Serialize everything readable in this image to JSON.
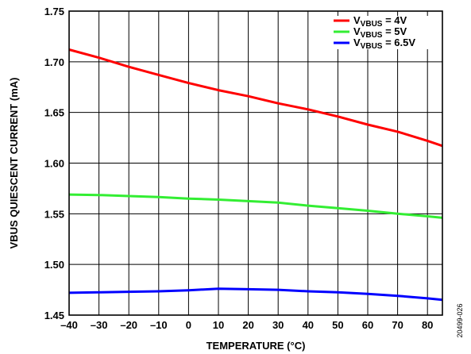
{
  "chart_data": {
    "type": "line",
    "xlabel": "TEMPERATURE (°C)",
    "ylabel": "VBUS QUIESCENT CURRENT (mA)",
    "xlim": [
      -40,
      85
    ],
    "ylim": [
      1.45,
      1.75
    ],
    "xticks": [
      "–40",
      "–30",
      "–20",
      "–10",
      "0",
      "10",
      "20",
      "30",
      "40",
      "50",
      "60",
      "70",
      "80"
    ],
    "yticks": [
      "1.45",
      "1.50",
      "1.55",
      "1.60",
      "1.65",
      "1.70",
      "1.75"
    ],
    "grid": true,
    "legend_position": "top-right",
    "series": [
      {
        "name": "VVBUS = 4V",
        "label_main": "V",
        "label_sub": "VBUS",
        "label_tail": " = 4V",
        "color": "#ff0000",
        "x": [
          -40,
          -30,
          -20,
          -10,
          0,
          10,
          20,
          30,
          40,
          50,
          60,
          70,
          80,
          85
        ],
        "y": [
          1.712,
          1.704,
          1.695,
          1.687,
          1.679,
          1.672,
          1.666,
          1.659,
          1.653,
          1.646,
          1.638,
          1.631,
          1.622,
          1.617
        ]
      },
      {
        "name": "VVBUS = 5V",
        "label_main": "V",
        "label_sub": "VBUS",
        "label_tail": " = 5V",
        "color": "#33ee33",
        "x": [
          -40,
          -30,
          -20,
          -10,
          0,
          10,
          20,
          30,
          40,
          50,
          60,
          70,
          80,
          85
        ],
        "y": [
          1.569,
          1.5685,
          1.5675,
          1.5665,
          1.565,
          1.564,
          1.5625,
          1.561,
          1.558,
          1.5555,
          1.553,
          1.55,
          1.5475,
          1.546
        ]
      },
      {
        "name": "VVBUS = 6.5V",
        "label_main": "V",
        "label_sub": "VBUS",
        "label_tail": " = 6.5V",
        "color": "#0000ff",
        "x": [
          -40,
          -30,
          -20,
          -10,
          0,
          10,
          20,
          30,
          40,
          50,
          60,
          70,
          80,
          85
        ],
        "y": [
          1.472,
          1.4725,
          1.473,
          1.4735,
          1.4745,
          1.476,
          1.4755,
          1.475,
          1.4735,
          1.4725,
          1.471,
          1.469,
          1.4665,
          1.465
        ]
      }
    ]
  },
  "figure_id": "20499-026"
}
